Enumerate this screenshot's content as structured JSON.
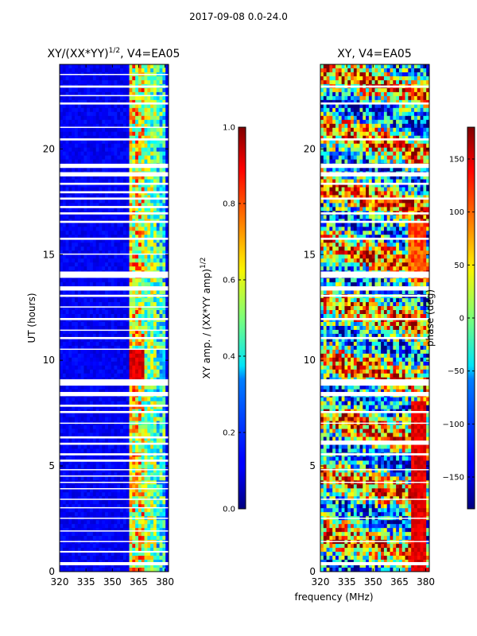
{
  "figure": {
    "suptitle": "2017-09-08 0.0-24.0",
    "shared_xlabel": "frequency (MHz)"
  },
  "chart_data": [
    {
      "type": "heatmap",
      "title_main": "XY/(XX*YY)",
      "title_exp": "1/2",
      "title_rest": ", V4=EA05",
      "xlabel": "",
      "ylabel": "UT (hours)",
      "xlim": [
        320,
        382
      ],
      "ylim": [
        0,
        24
      ],
      "xticks": [
        "320",
        "335",
        "350",
        "365",
        "380"
      ],
      "xtick_values": [
        320,
        335,
        350,
        365,
        380
      ],
      "yticks": [
        "0",
        "5",
        "10",
        "15",
        "20"
      ],
      "ytick_values": [
        0,
        5,
        10,
        15,
        20
      ],
      "colormap": "jet",
      "colorbar": {
        "label_main": "XY amp. / (XX*YY amp)",
        "label_exp": "1/2",
        "range": [
          0.0,
          1.0
        ],
        "ticks": [
          "0.0",
          "0.2",
          "0.4",
          "0.6",
          "0.8",
          "1.0"
        ],
        "tick_values": [
          0.0,
          0.2,
          0.4,
          0.6,
          0.8,
          1.0
        ]
      },
      "flagged_gaps_hours": [
        [
          0.3,
          0.45
        ],
        [
          0.9,
          0.98
        ],
        [
          1.4,
          1.45
        ],
        [
          1.9,
          1.95
        ],
        [
          2.5,
          2.55
        ],
        [
          3.0,
          3.05
        ],
        [
          3.4,
          3.45
        ],
        [
          3.9,
          3.95
        ],
        [
          4.2,
          4.25
        ],
        [
          4.5,
          4.55
        ],
        [
          4.8,
          4.85
        ],
        [
          5.2,
          5.3
        ],
        [
          5.5,
          5.6
        ],
        [
          6.0,
          6.1
        ],
        [
          6.3,
          6.4
        ],
        [
          7.0,
          7.05
        ],
        [
          7.5,
          7.6
        ],
        [
          7.8,
          7.9
        ],
        [
          8.3,
          8.5
        ],
        [
          8.8,
          9.1
        ],
        [
          10.5,
          10.55
        ],
        [
          11.0,
          11.1
        ],
        [
          11.4,
          11.45
        ],
        [
          11.9,
          12.0
        ],
        [
          12.5,
          12.55
        ],
        [
          13.0,
          13.1
        ],
        [
          13.3,
          13.5
        ],
        [
          13.9,
          14.2
        ],
        [
          15.0,
          15.05
        ],
        [
          15.7,
          15.8
        ],
        [
          16.5,
          16.6
        ],
        [
          16.9,
          17.0
        ],
        [
          17.2,
          17.3
        ],
        [
          17.6,
          17.7
        ],
        [
          17.9,
          18.0
        ],
        [
          18.3,
          18.4
        ],
        [
          18.7,
          18.9
        ],
        [
          19.1,
          19.3
        ],
        [
          20.4,
          20.5
        ],
        [
          21.0,
          21.05
        ],
        [
          22.1,
          22.2
        ],
        [
          22.5,
          22.55
        ],
        [
          22.9,
          23.0
        ],
        [
          23.5,
          23.55
        ]
      ]
    },
    {
      "type": "heatmap",
      "title_main": "XY, V4=EA05",
      "xlabel": "frequency (MHz)",
      "ylabel": "",
      "xlim": [
        320,
        382
      ],
      "ylim": [
        0,
        24
      ],
      "xticks": [
        "320",
        "335",
        "350",
        "365",
        "380"
      ],
      "xtick_values": [
        320,
        335,
        350,
        365,
        380
      ],
      "yticks": [
        "0",
        "5",
        "10",
        "15",
        "20"
      ],
      "ytick_values": [
        0,
        5,
        10,
        15,
        20
      ],
      "colormap": "jet",
      "colorbar": {
        "label_main": "phase (deg)",
        "range": [
          -180,
          180
        ],
        "ticks": [
          "−150",
          "−100",
          "−50",
          "0",
          "50",
          "100",
          "150"
        ],
        "tick_values": [
          -150,
          -100,
          -50,
          0,
          50,
          100,
          150
        ]
      },
      "flagged_gaps_hours": [
        [
          0.3,
          0.45
        ],
        [
          1.4,
          1.45
        ],
        [
          2.5,
          2.55
        ],
        [
          3.4,
          3.45
        ],
        [
          4.2,
          4.25
        ],
        [
          4.8,
          4.85
        ],
        [
          5.5,
          5.6
        ],
        [
          6.0,
          6.2
        ],
        [
          7.0,
          7.05
        ],
        [
          7.5,
          7.6
        ],
        [
          8.3,
          8.5
        ],
        [
          8.8,
          9.1
        ],
        [
          11.0,
          11.1
        ],
        [
          11.9,
          12.0
        ],
        [
          13.0,
          13.1
        ],
        [
          13.3,
          13.5
        ],
        [
          13.9,
          14.2
        ],
        [
          15.7,
          15.8
        ],
        [
          16.5,
          16.6
        ],
        [
          16.9,
          17.0
        ],
        [
          17.6,
          17.7
        ],
        [
          18.3,
          18.4
        ],
        [
          18.7,
          18.9
        ],
        [
          19.1,
          19.3
        ],
        [
          20.4,
          20.5
        ],
        [
          22.1,
          22.2
        ],
        [
          22.9,
          23.0
        ]
      ]
    }
  ]
}
